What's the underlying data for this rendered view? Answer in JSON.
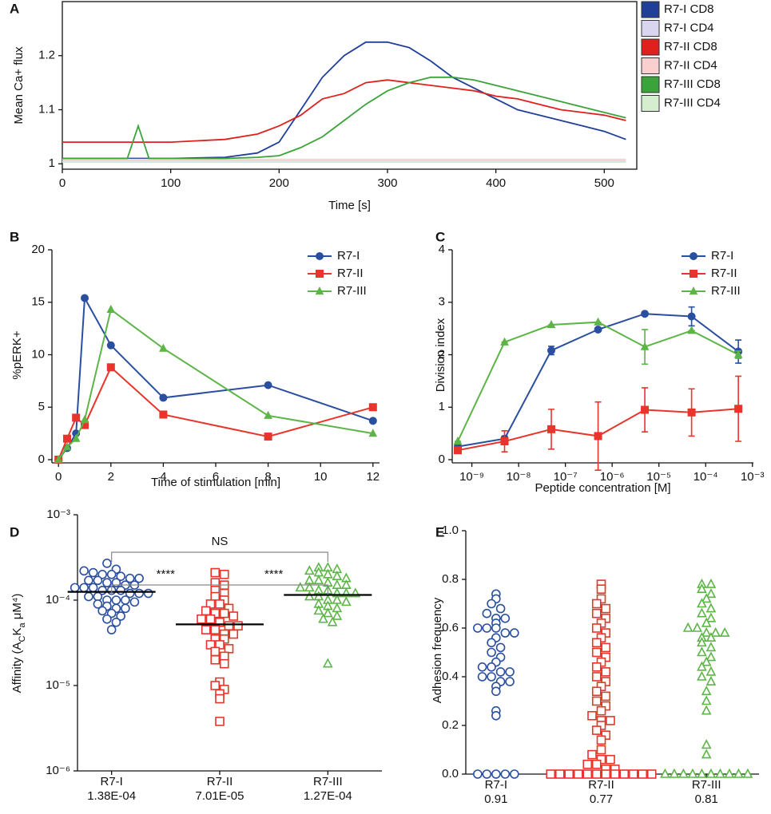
{
  "chart_data": [
    {
      "type": "line",
      "label": "A",
      "xlabel": "Time [s]",
      "ylabel": "Mean Ca+ flux",
      "x": [
        0,
        60,
        70,
        80,
        100,
        150,
        180,
        200,
        220,
        240,
        260,
        280,
        300,
        320,
        340,
        360,
        380,
        400,
        420,
        440,
        460,
        480,
        500,
        520
      ],
      "xlim": [
        0,
        530
      ],
      "xticks": [
        0,
        100,
        200,
        300,
        400,
        500
      ],
      "ylim": [
        0.99,
        1.3
      ],
      "yticks": [
        1,
        1.1,
        1.2
      ],
      "legend": "outside-right",
      "series": [
        {
          "name": "R7-I CD8",
          "color": "#1f3f99",
          "values": [
            1.01,
            1.01,
            1.01,
            1.01,
            1.01,
            1.012,
            1.02,
            1.04,
            1.1,
            1.16,
            1.2,
            1.225,
            1.225,
            1.215,
            1.19,
            1.16,
            1.14,
            1.12,
            1.1,
            1.09,
            1.08,
            1.07,
            1.06,
            1.045
          ]
        },
        {
          "name": "R7-I CD4",
          "color": "#d9d4f0",
          "values": [
            1.005,
            1.005,
            1.005,
            1.005,
            1.005,
            1.005,
            1.005,
            1.005,
            1.005,
            1.005,
            1.005,
            1.005,
            1.005,
            1.005,
            1.005,
            1.005,
            1.005,
            1.005,
            1.005,
            1.005,
            1.005,
            1.005,
            1.005,
            1.005
          ]
        },
        {
          "name": "R7-II CD8",
          "color": "#e0201c",
          "values": [
            1.04,
            1.04,
            1.04,
            1.04,
            1.04,
            1.045,
            1.055,
            1.07,
            1.09,
            1.12,
            1.13,
            1.15,
            1.155,
            1.15,
            1.145,
            1.14,
            1.135,
            1.125,
            1.12,
            1.11,
            1.1,
            1.095,
            1.09,
            1.08
          ]
        },
        {
          "name": "R7-II CD4",
          "color": "#f9cfcf",
          "values": [
            1.008,
            1.008,
            1.008,
            1.008,
            1.008,
            1.008,
            1.008,
            1.008,
            1.008,
            1.008,
            1.008,
            1.008,
            1.008,
            1.008,
            1.008,
            1.008,
            1.008,
            1.008,
            1.008,
            1.008,
            1.008,
            1.008,
            1.008,
            1.008
          ]
        },
        {
          "name": "R7-III CD8",
          "color": "#3aa33a",
          "values": [
            1.01,
            1.01,
            1.07,
            1.01,
            1.01,
            1.01,
            1.012,
            1.015,
            1.03,
            1.05,
            1.08,
            1.11,
            1.135,
            1.15,
            1.16,
            1.16,
            1.155,
            1.145,
            1.135,
            1.125,
            1.115,
            1.105,
            1.095,
            1.085
          ]
        },
        {
          "name": "R7-III CD4",
          "color": "#d5eed0",
          "values": [
            1.003,
            1.003,
            1.003,
            1.003,
            1.003,
            1.003,
            1.003,
            1.003,
            1.003,
            1.003,
            1.003,
            1.003,
            1.003,
            1.003,
            1.003,
            1.003,
            1.003,
            1.003,
            1.003,
            1.003,
            1.003,
            1.003,
            1.003,
            1.003
          ]
        }
      ]
    },
    {
      "type": "line",
      "label": "B",
      "xlabel": "Time of stimulation [min]",
      "ylabel": "%pERK+",
      "x": [
        0,
        0.33,
        0.67,
        1,
        2,
        4,
        8,
        12
      ],
      "xlim": [
        -0.25,
        12.25
      ],
      "xticks": [
        0,
        2,
        4,
        6,
        8,
        10,
        12
      ],
      "ylim": [
        0,
        20
      ],
      "yticks": [
        0,
        5,
        10,
        15,
        20
      ],
      "legend": "top-right",
      "series": [
        {
          "name": "R7-I",
          "color": "#2a4ea0",
          "marker": "circle",
          "values": [
            0,
            1.1,
            2.5,
            15.4,
            10.9,
            5.9,
            7.1,
            3.7
          ]
        },
        {
          "name": "R7-II",
          "color": "#e8342a",
          "marker": "square",
          "values": [
            0,
            2,
            4,
            3.3,
            8.8,
            4.3,
            2.2,
            5
          ]
        },
        {
          "name": "R7-III",
          "color": "#5cb546",
          "marker": "triangle",
          "values": [
            0,
            1.2,
            2,
            3.8,
            14.3,
            10.6,
            4.2,
            2.5
          ]
        }
      ]
    },
    {
      "type": "line",
      "label": "C",
      "xlabel": "Peptide concentration [M]",
      "ylabel": "Division index",
      "log_x": true,
      "x": [
        5e-10,
        5e-09,
        5e-08,
        5e-07,
        5e-06,
        5e-05,
        0.0005
      ],
      "xlim": [
        3.8e-10,
        0.00105
      ],
      "xticks": [
        {
          "value": 1e-09,
          "label": "10⁻⁹"
        },
        {
          "value": 1e-08,
          "label": "10⁻⁸"
        },
        {
          "value": 1e-07,
          "label": "10⁻⁷"
        },
        {
          "value": 1e-06,
          "label": "10⁻⁶"
        },
        {
          "value": 1e-05,
          "label": "10⁻⁵"
        },
        {
          "value": 0.0001,
          "label": "10⁻⁴"
        },
        {
          "value": 0.001,
          "label": "10⁻³"
        }
      ],
      "ylim": [
        0,
        4
      ],
      "yticks": [
        0,
        1,
        2,
        3,
        4
      ],
      "legend": "top-right",
      "series": [
        {
          "name": "R7-I",
          "color": "#2a4ea0",
          "marker": "circle",
          "values": [
            0.25,
            0.4,
            2.08,
            2.48,
            2.78,
            2.73,
            2.06
          ],
          "errors": [
            0,
            0.05,
            0.08,
            0,
            0,
            0.18,
            0.22
          ]
        },
        {
          "name": "R7-II",
          "color": "#e8342a",
          "marker": "square",
          "values": [
            0.18,
            0.35,
            0.58,
            0.45,
            0.95,
            0.9,
            0.97
          ],
          "errors": [
            0.03,
            0.2,
            0.38,
            0.65,
            0.42,
            0.45,
            0.62
          ]
        },
        {
          "name": "R7-III",
          "color": "#5cb546",
          "marker": "triangle",
          "values": [
            0.35,
            2.24,
            2.57,
            2.62,
            2.15,
            2.46,
            2.0
          ],
          "errors": [
            0,
            0,
            0,
            0,
            0.33,
            0,
            0.07
          ]
        }
      ]
    },
    {
      "type": "dot",
      "label": "D",
      "ylabel": [
        "Affinity (A",
        "C",
        "K",
        "a",
        " μM⁴)"
      ],
      "log_y": true,
      "ylim": [
        1e-06,
        0.001
      ],
      "yticks": [
        {
          "value": 1e-06,
          "label": "10⁻⁶"
        },
        {
          "value": 1e-05,
          "label": "10⁻⁵"
        },
        {
          "value": 0.0001,
          "label": "10⁻⁴"
        },
        {
          "value": 0.001,
          "label": "10⁻³"
        }
      ],
      "categories": [
        "R7-I",
        "R7-II",
        "R7-III"
      ],
      "sublabels": [
        "1.38E-04",
        "7.01E-05",
        "1.27E-04"
      ],
      "groups": [
        {
          "color": "#2a4ea0",
          "marker": "circle",
          "median": 0.000125,
          "values": [
            0.00027,
            0.00023,
            0.00022,
            0.00021,
            0.0002,
            0.0002,
            0.00019,
            0.00018,
            0.00018,
            0.00017,
            0.00017,
            0.00016,
            0.00016,
            0.00015,
            0.00015,
            0.00014,
            0.00014,
            0.00014,
            0.00013,
            0.00013,
            0.00013,
            0.00012,
            0.00012,
            0.00012,
            0.00011,
            0.00011,
            0.0001,
            0.0001,
            0.0001,
            9.5e-05,
            9e-05,
            8.5e-05,
            8e-05,
            8e-05,
            7.5e-05,
            7e-05,
            6.5e-05,
            6e-05,
            5.5e-05,
            4.5e-05
          ]
        },
        {
          "color": "#e8342a",
          "marker": "square",
          "median": 5.2e-05,
          "values": [
            0.00021,
            0.0002,
            0.00016,
            0.00015,
            0.00013,
            0.00012,
            0.00011,
            0.0001,
            9e-05,
            9e-05,
            8e-05,
            7.5e-05,
            7e-05,
            7e-05,
            6.5e-05,
            6e-05,
            6e-05,
            5.5e-05,
            5e-05,
            5e-05,
            4.5e-05,
            4.5e-05,
            4e-05,
            4e-05,
            3.5e-05,
            3.5e-05,
            3e-05,
            3e-05,
            2.7e-05,
            2.5e-05,
            2.2e-05,
            2e-05,
            1.8e-05,
            1.1e-05,
            1e-05,
            9e-06,
            8e-06,
            7e-06,
            3.8e-06
          ]
        },
        {
          "color": "#5cb546",
          "marker": "triangle",
          "median": 0.000115,
          "values": [
            0.00024,
            0.00024,
            0.00023,
            0.00022,
            0.00021,
            0.0002,
            0.00019,
            0.00018,
            0.00017,
            0.00017,
            0.00016,
            0.00015,
            0.00015,
            0.00014,
            0.00014,
            0.00013,
            0.00013,
            0.00012,
            0.00012,
            0.00012,
            0.00011,
            0.00011,
            0.0001,
            0.0001,
            9.5e-05,
            9e-05,
            8.5e-05,
            8e-05,
            7.5e-05,
            7e-05,
            6.5e-05,
            6e-05,
            5.5e-05,
            1.8e-05
          ]
        }
      ],
      "annotations": [
        {
          "text": "NS",
          "from": 0,
          "to": 2
        },
        {
          "text": "****",
          "from": 0,
          "to": 1
        },
        {
          "text": "****",
          "from": 1,
          "to": 2
        }
      ]
    },
    {
      "type": "dot",
      "label": "E",
      "ylabel": [
        "Adhesion frequency"
      ],
      "ylim": [
        0,
        1
      ],
      "yticks": [
        {
          "value": 0,
          "label": "0.0"
        },
        0.2,
        0.4,
        0.6,
        0.8,
        {
          "value": 1,
          "label": "1.0"
        }
      ],
      "categories": [
        "R7-I",
        "R7-II",
        "R7-III"
      ],
      "sublabels": [
        "0.91",
        "0.77",
        "0.81"
      ],
      "groups": [
        {
          "color": "#2a4ea0",
          "marker": "circle",
          "values": [
            0.74,
            0.72,
            0.7,
            0.68,
            0.66,
            0.64,
            0.64,
            0.62,
            0.6,
            0.6,
            0.6,
            0.58,
            0.58,
            0.56,
            0.54,
            0.52,
            0.5,
            0.48,
            0.46,
            0.44,
            0.44,
            0.42,
            0.42,
            0.4,
            0.4,
            0.38,
            0.38,
            0.36,
            0.34,
            0.26,
            0.24,
            0,
            0,
            0,
            0,
            0
          ]
        },
        {
          "color": "#e8342a",
          "marker": "square",
          "values": [
            0.78,
            0.76,
            0.72,
            0.7,
            0.68,
            0.66,
            0.64,
            0.62,
            0.6,
            0.58,
            0.56,
            0.54,
            0.52,
            0.5,
            0.48,
            0.46,
            0.44,
            0.42,
            0.4,
            0.38,
            0.36,
            0.34,
            0.32,
            0.3,
            0.28,
            0.26,
            0.24,
            0.22,
            0.22,
            0.2,
            0.18,
            0.16,
            0.14,
            0.1,
            0.08,
            0.06,
            0.06,
            0.04,
            0.04,
            0.02,
            0.02,
            0,
            0,
            0,
            0,
            0,
            0,
            0,
            0,
            0,
            0,
            0,
            0
          ]
        },
        {
          "color": "#5cb546",
          "marker": "triangle",
          "values": [
            0.78,
            0.78,
            0.76,
            0.74,
            0.72,
            0.7,
            0.68,
            0.66,
            0.64,
            0.62,
            0.6,
            0.6,
            0.58,
            0.58,
            0.58,
            0.56,
            0.56,
            0.54,
            0.52,
            0.5,
            0.48,
            0.46,
            0.44,
            0.42,
            0.4,
            0.38,
            0.34,
            0.3,
            0.26,
            0.12,
            0.08,
            0,
            0,
            0,
            0,
            0,
            0,
            0,
            0,
            0,
            0
          ]
        }
      ]
    }
  ]
}
